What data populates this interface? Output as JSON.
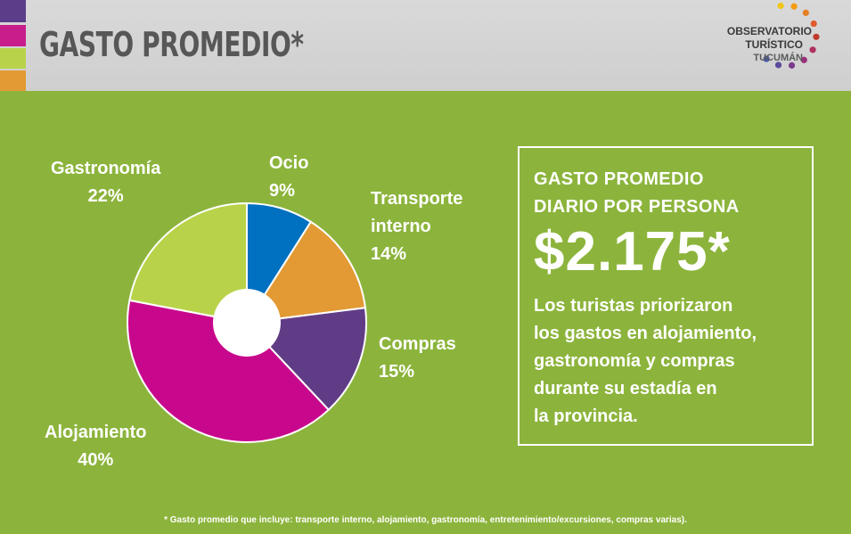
{
  "header": {
    "title": "GASTO PROMEDIO*",
    "strip_colors": [
      "#5c3d8a",
      "#c81e8c",
      "#b8d34a",
      "#e39a34"
    ]
  },
  "logo": {
    "line1": "OBSERVATORIO",
    "line2": "TURÍSTICO",
    "line3": "TUCUMÁN",
    "icon": "dotted-arc-logo-icon",
    "dot_colors": [
      "#f0c419",
      "#f39c12",
      "#e67e22",
      "#e05a2b",
      "#c0392b",
      "#b03060",
      "#9b2f7a",
      "#7a3a8c",
      "#5b4a9e",
      "#4a5aa8"
    ]
  },
  "chart_data": {
    "type": "pie",
    "labels": [
      "Ocio",
      "Transporte interno",
      "Compras",
      "Alojamiento",
      "Gastronomía"
    ],
    "values": [
      9,
      14,
      15,
      40,
      22
    ],
    "value_labels": [
      "9%",
      "14%",
      "15%",
      "40%",
      "22%"
    ],
    "colors": [
      "#0070c0",
      "#e39a34",
      "#613c86",
      "#c8088c",
      "#b8d34a"
    ],
    "unit": "%",
    "donut_hole": true
  },
  "slice_labels": {
    "ocio": {
      "name": "Ocio",
      "pct": "9%"
    },
    "transporte": {
      "line1": "Transporte",
      "line2": "interno",
      "pct": "14%"
    },
    "compras": {
      "name": "Compras",
      "pct": "15%"
    },
    "alojamiento": {
      "name": "Alojamiento",
      "pct": "40%"
    },
    "gastronomia": {
      "name": "Gastronomía",
      "pct": "22%"
    }
  },
  "info": {
    "heading_line1": "GASTO PROMEDIO",
    "heading_line2": "DIARIO POR PERSONA",
    "amount": "$2.175*",
    "text_lines": [
      "Los turistas priorizaron",
      "los gastos en alojamiento,",
      "gastronomía y compras",
      "durante su estadía en",
      "la provincia."
    ]
  },
  "footnote": "* Gasto promedio que incluye: transporte interno, alojamiento, gastronomía, entretenimiento/excursiones, compras varias)."
}
